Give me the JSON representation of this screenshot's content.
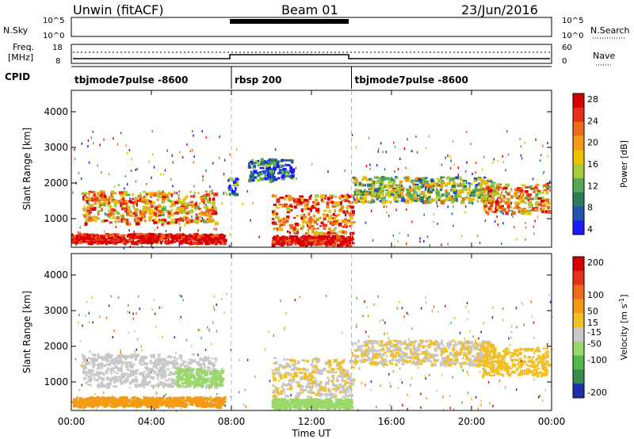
{
  "header": {
    "station": "Unwin (fitACF)",
    "beam": "Beam 01",
    "date": "23/Jun/2016"
  },
  "top_panels": {
    "nsky_label": "N.Sky",
    "nsky_ticks": [
      "10^5",
      "10^0"
    ],
    "nsearch_label": "N.Search",
    "freq_label_1": "Freq.",
    "freq_label_2": "[MHz]",
    "freq_ticks": [
      "18",
      "8"
    ],
    "nave_label": "Nave",
    "nave_ticks": [
      "60",
      "0"
    ],
    "cpid_label": "CPID",
    "modes": [
      {
        "name": "tbjmode7pulse -8600",
        "start_hr": 0,
        "end_hr": 8
      },
      {
        "name": "rbsp 200",
        "start_hr": 8,
        "end_hr": 14
      },
      {
        "name": "tbjmode7pulse -8600",
        "start_hr": 14,
        "end_hr": 24
      }
    ]
  },
  "chart_data": [
    {
      "type": "heatmap",
      "title": "",
      "ylabel": "Slant Range [km]",
      "xlabel": "",
      "ylim": [
        200,
        4600
      ],
      "xlim": [
        0,
        24
      ],
      "yticks": [
        1000,
        2000,
        3000,
        4000
      ],
      "colorbar": {
        "label": "Power [dB]",
        "ticks": [
          28,
          24,
          20,
          16,
          12,
          8,
          4
        ],
        "colors": [
          "#1a1aff",
          "#2255aa",
          "#2e7d5a",
          "#55aa55",
          "#a6cc3c",
          "#f0c000",
          "#f39b15",
          "#ee6a1a",
          "#e83018",
          "#d80000"
        ]
      },
      "echo_bands": [
        {
          "t0": 0,
          "t1": 7.6,
          "r0": 350,
          "r1": 600,
          "value": 28
        },
        {
          "t0": 0.5,
          "t1": 7.2,
          "r0": 900,
          "r1": 1800,
          "value": 20
        },
        {
          "t0": 7.8,
          "t1": 8.2,
          "r0": 1700,
          "r1": 2200,
          "value": 10
        },
        {
          "t0": 8.8,
          "t1": 11,
          "r0": 2100,
          "r1": 2700,
          "value": 8
        },
        {
          "t0": 10,
          "t1": 14,
          "r0": 600,
          "r1": 1700,
          "value": 22
        },
        {
          "t0": 10,
          "t1": 14,
          "r0": 300,
          "r1": 550,
          "value": 28
        },
        {
          "t0": 14,
          "t1": 21,
          "r0": 1500,
          "r1": 2200,
          "value": 14
        },
        {
          "t0": 20.5,
          "t1": 23.8,
          "r0": 1200,
          "r1": 2000,
          "value": 20
        }
      ]
    },
    {
      "type": "heatmap",
      "title": "",
      "ylabel": "Slant Range [km]",
      "xlabel": "Time UT",
      "ylim": [
        200,
        4600
      ],
      "xlim": [
        0,
        24
      ],
      "yticks": [
        1000,
        2000,
        3000,
        4000
      ],
      "xticks": [
        "00:00",
        "04:00",
        "08:00",
        "12:00",
        "16:00",
        "20:00",
        "00:00"
      ],
      "colorbar": {
        "label": "Velocity [m s-1]",
        "label_main": "Velocity [m s",
        "label_sup": "-1",
        "label_close": "]",
        "ticks": [
          200,
          100,
          50,
          15,
          -15,
          -50,
          -100,
          -200
        ],
        "colors": [
          "#1f2fa8",
          "#3a8a4e",
          "#52b848",
          "#9bd86a",
          "#c8c8c8",
          "#f2c026",
          "#f39b15",
          "#ee6a1a",
          "#e83018",
          "#d80000"
        ]
      },
      "echo_bands": [
        {
          "t0": 0,
          "t1": 7.6,
          "r0": 350,
          "r1": 600,
          "value": 60
        },
        {
          "t0": 0.5,
          "t1": 7.2,
          "r0": 900,
          "r1": 1800,
          "value": -10
        },
        {
          "t0": 5.2,
          "t1": 7.5,
          "r0": 900,
          "r1": 1400,
          "value": -60
        },
        {
          "t0": 10,
          "t1": 14,
          "r0": 600,
          "r1": 1700,
          "value": 0
        },
        {
          "t0": 10,
          "t1": 14,
          "r0": 300,
          "r1": 550,
          "value": -70
        },
        {
          "t0": 14,
          "t1": 21,
          "r0": 1500,
          "r1": 2200,
          "value": 0
        },
        {
          "t0": 20.5,
          "t1": 23.8,
          "r0": 1200,
          "r1": 2000,
          "value": 10
        }
      ]
    }
  ]
}
